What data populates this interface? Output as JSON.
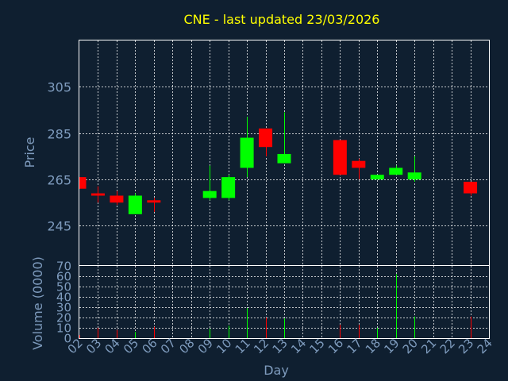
{
  "chart_data": [
    {
      "type": "candlestick",
      "title": "CNE - last updated 23/03/2026",
      "ylabel": "Price",
      "yticks": [
        245,
        265,
        285,
        305
      ],
      "ylim": [
        228,
        325
      ],
      "xlim": [
        2,
        24
      ],
      "colors": {
        "up": "#00ff00",
        "down": "#ff0000",
        "title": "#ffff00",
        "axis": "#7e9bbd",
        "background": "#0f1f30"
      },
      "candles": [
        {
          "day": 2,
          "open": 266,
          "high": 266,
          "low": 261,
          "close": 261
        },
        {
          "day": 3,
          "open": 259,
          "high": 262,
          "low": 255,
          "close": 258
        },
        {
          "day": 4,
          "open": 258,
          "high": 260,
          "low": 254,
          "close": 255
        },
        {
          "day": 5,
          "open": 250,
          "high": 259,
          "low": 250,
          "close": 258
        },
        {
          "day": 6,
          "open": 256,
          "high": 257,
          "low": 251,
          "close": 255
        },
        {
          "day": 9,
          "open": 257,
          "high": 271,
          "low": 256,
          "close": 260
        },
        {
          "day": 10,
          "open": 257,
          "high": 267,
          "low": 256,
          "close": 266
        },
        {
          "day": 11,
          "open": 270,
          "high": 292,
          "low": 266,
          "close": 283
        },
        {
          "day": 12,
          "open": 287,
          "high": 287,
          "low": 275,
          "close": 279
        },
        {
          "day": 13,
          "open": 272,
          "high": 294,
          "low": 272,
          "close": 276
        },
        {
          "day": 16,
          "open": 282,
          "high": 282,
          "low": 267,
          "close": 267
        },
        {
          "day": 17,
          "open": 273,
          "high": 274,
          "low": 265,
          "close": 270
        },
        {
          "day": 18,
          "open": 265,
          "high": 267,
          "low": 265,
          "close": 267
        },
        {
          "day": 19,
          "open": 267,
          "high": 271,
          "low": 267,
          "close": 270
        },
        {
          "day": 20,
          "open": 265,
          "high": 275,
          "low": 264,
          "close": 268
        },
        {
          "day": 23,
          "open": 264,
          "high": 264,
          "low": 258,
          "close": 259
        }
      ]
    },
    {
      "type": "bar",
      "ylabel": "Volume (0000)",
      "yticks": [
        0,
        10,
        20,
        30,
        40,
        50,
        60,
        70
      ],
      "ylim": [
        0,
        70
      ],
      "xlabel": "Day",
      "xticks": [
        "02",
        "03",
        "04",
        "05",
        "06",
        "07",
        "08",
        "09",
        "10",
        "11",
        "12",
        "13",
        "14",
        "15",
        "16",
        "17",
        "18",
        "19",
        "20",
        "21",
        "22",
        "23",
        "24"
      ],
      "volumes": [
        {
          "day": 2,
          "value": 3,
          "dir": "down"
        },
        {
          "day": 3,
          "value": 10,
          "dir": "down"
        },
        {
          "day": 4,
          "value": 8,
          "dir": "down"
        },
        {
          "day": 5,
          "value": 6,
          "dir": "up"
        },
        {
          "day": 6,
          "value": 11,
          "dir": "down"
        },
        {
          "day": 9,
          "value": 9,
          "dir": "up"
        },
        {
          "day": 10,
          "value": 12,
          "dir": "up"
        },
        {
          "day": 11,
          "value": 29,
          "dir": "up"
        },
        {
          "day": 12,
          "value": 20,
          "dir": "down"
        },
        {
          "day": 13,
          "value": 19,
          "dir": "up"
        },
        {
          "day": 16,
          "value": 13,
          "dir": "down"
        },
        {
          "day": 17,
          "value": 13,
          "dir": "down"
        },
        {
          "day": 18,
          "value": 10,
          "dir": "up"
        },
        {
          "day": 19,
          "value": 62,
          "dir": "up"
        },
        {
          "day": 20,
          "value": 21,
          "dir": "up"
        },
        {
          "day": 23,
          "value": 21,
          "dir": "down"
        }
      ]
    }
  ]
}
